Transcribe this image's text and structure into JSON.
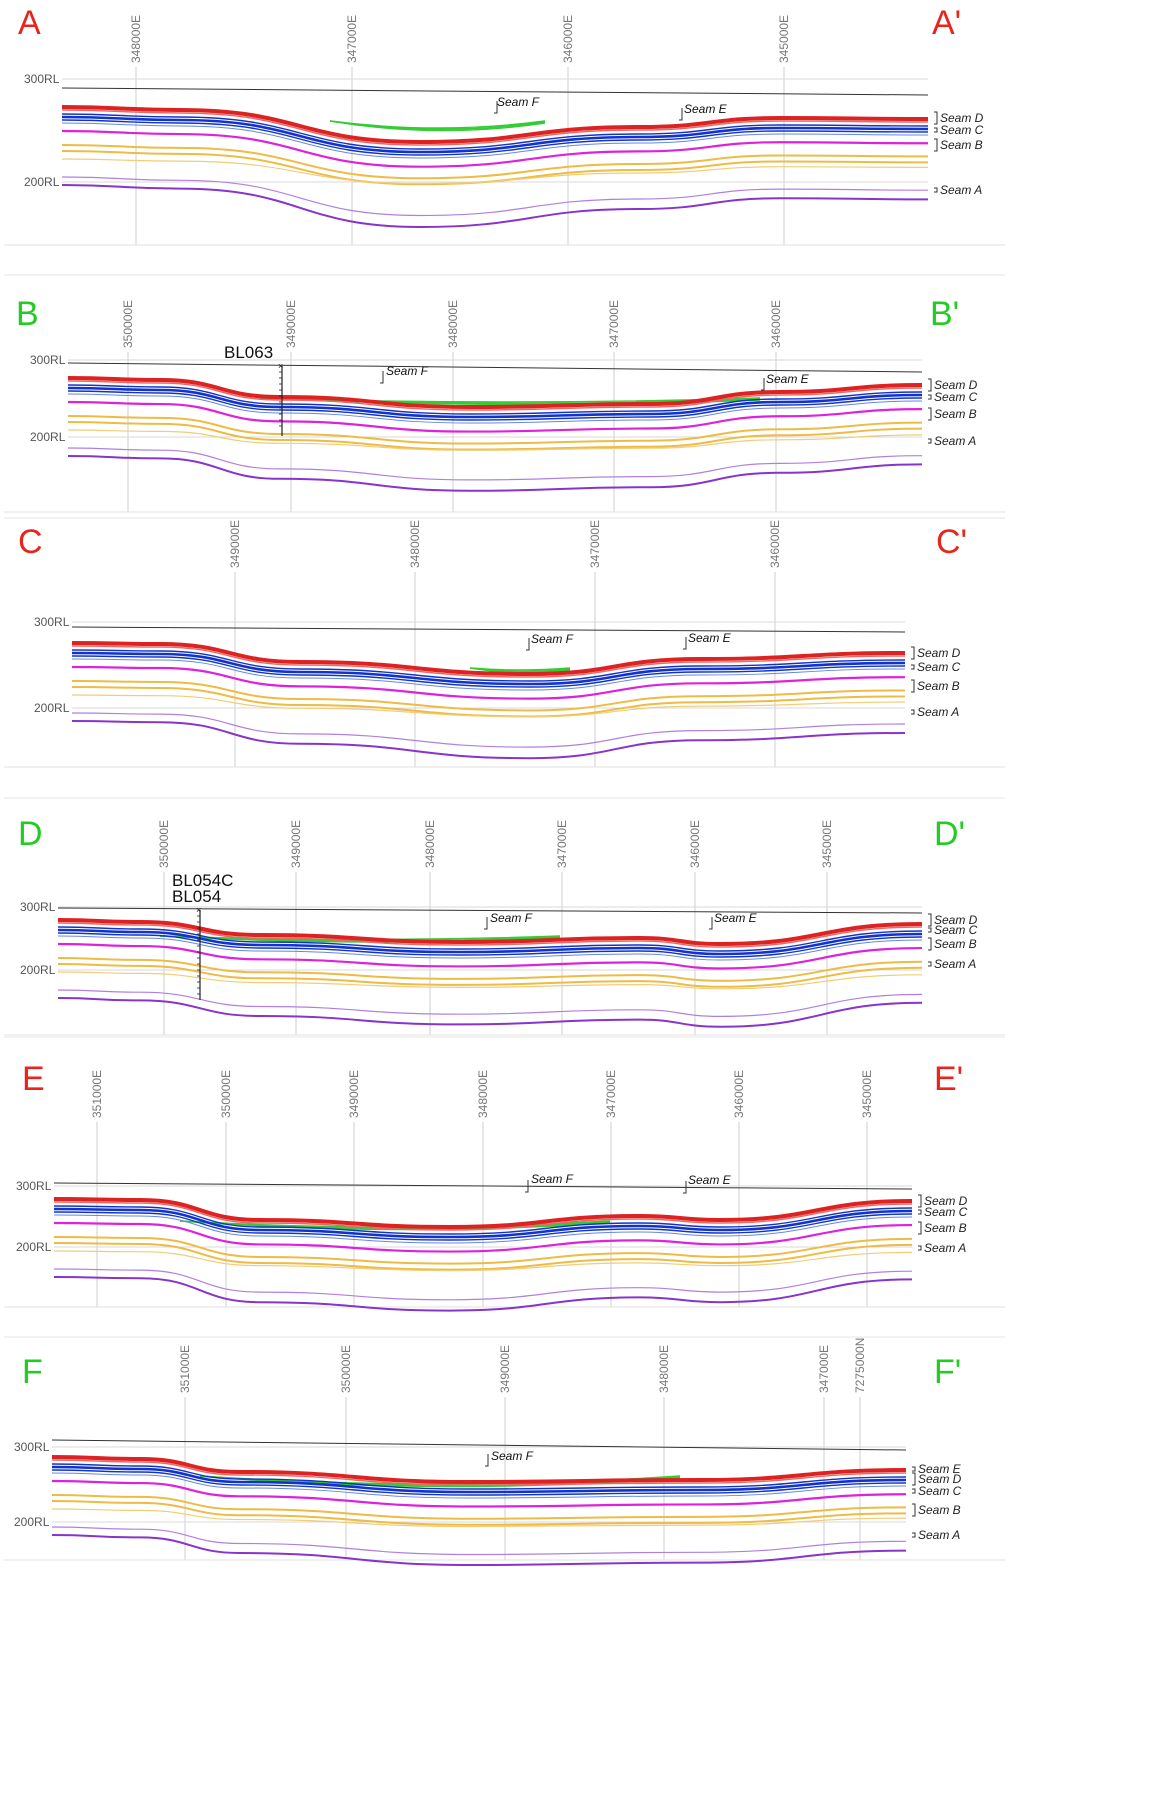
{
  "colors": {
    "seam_F": "#33cc33",
    "seam_E": "#dd2222",
    "seam_D": "#1133cc",
    "seam_C": "#dd22dd",
    "seam_B": "#eebb44",
    "seam_A": "#8833cc",
    "label_red": "#e8241c",
    "label_green": "#22cc22"
  },
  "sections": [
    {
      "left_label": "A",
      "right_label": "A'",
      "label_color": "red",
      "eastings": [
        "348000E",
        "347000E",
        "346000E",
        "345000E"
      ],
      "rl_labels": [
        "300RL",
        "200RL"
      ],
      "inline_seams": [
        "Seam F",
        "Seam E"
      ],
      "right_seams": [
        "Seam D",
        "Seam C",
        "Seam B",
        "Seam A"
      ],
      "holes": []
    },
    {
      "left_label": "B",
      "right_label": "B'",
      "label_color": "green",
      "eastings": [
        "350000E",
        "349000E",
        "348000E",
        "347000E",
        "346000E"
      ],
      "rl_labels": [
        "300RL",
        "200RL"
      ],
      "inline_seams": [
        "Seam F",
        "Seam E"
      ],
      "right_seams": [
        "Seam D",
        "Seam C",
        "Seam B",
        "Seam A"
      ],
      "holes": [
        "BL063"
      ]
    },
    {
      "left_label": "C",
      "right_label": "C'",
      "label_color": "red",
      "eastings": [
        "349000E",
        "348000E",
        "347000E",
        "346000E"
      ],
      "rl_labels": [
        "300RL",
        "200RL"
      ],
      "inline_seams": [
        "Seam F",
        "Seam E"
      ],
      "right_seams": [
        "Seam D",
        "Seam C",
        "Seam B",
        "Seam A"
      ],
      "holes": []
    },
    {
      "left_label": "D",
      "right_label": "D'",
      "label_color": "green",
      "eastings": [
        "350000E",
        "349000E",
        "348000E",
        "347000E",
        "346000E",
        "345000E"
      ],
      "rl_labels": [
        "300RL",
        "200RL"
      ],
      "inline_seams": [
        "Seam F",
        "Seam E"
      ],
      "right_seams": [
        "Seam D",
        "Seam C",
        "Seam B",
        "Seam A"
      ],
      "holes": [
        "BL054C",
        "BL054"
      ]
    },
    {
      "left_label": "E",
      "right_label": "E'",
      "label_color": "red",
      "eastings": [
        "351000E",
        "350000E",
        "349000E",
        "348000E",
        "347000E",
        "346000E",
        "345000E"
      ],
      "rl_labels": [
        "300RL",
        "200RL"
      ],
      "inline_seams": [
        "Seam F",
        "Seam E"
      ],
      "right_seams": [
        "Seam D",
        "Seam C",
        "Seam B",
        "Seam A"
      ],
      "holes": []
    },
    {
      "left_label": "F",
      "right_label": "F'",
      "label_color": "green",
      "eastings": [
        "351000E",
        "350000E",
        "349000E",
        "348000E",
        "347000E",
        "7275000N"
      ],
      "rl_labels": [
        "300RL",
        "200RL"
      ],
      "inline_seams": [
        "Seam F"
      ],
      "right_seams": [
        "Seam E",
        "Seam D",
        "Seam C",
        "Seam B",
        "Seam A"
      ],
      "holes": []
    }
  ]
}
